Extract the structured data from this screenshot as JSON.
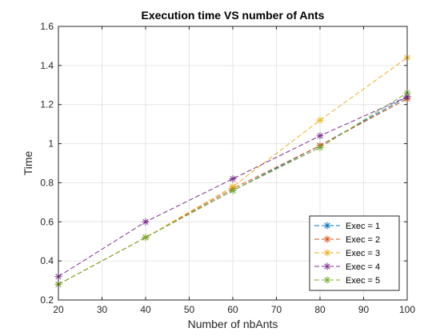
{
  "chart_data": {
    "type": "line",
    "title": "Execution time VS number of Ants",
    "xlabel": "Number of nbAnts",
    "ylabel": "Time",
    "xlim": [
      20,
      100
    ],
    "ylim": [
      0.2,
      1.6
    ],
    "x_ticks": [
      "20",
      "30",
      "40",
      "50",
      "60",
      "70",
      "80",
      "90",
      "100"
    ],
    "y_ticks": [
      "0.2",
      "0.4",
      "0.6",
      "0.8",
      "1",
      "1.2",
      "1.4",
      "1.6"
    ],
    "grid": true,
    "legend_position": "bottom-right",
    "marker": "asterisk",
    "line_style": "dashed",
    "x": [
      20,
      40,
      60,
      80,
      100
    ],
    "series": [
      {
        "name": "Exec = 1",
        "color": "#0072BD",
        "values": [
          0.28,
          0.52,
          0.76,
          0.99,
          1.24
        ]
      },
      {
        "name": "Exec = 2",
        "color": "#D95319",
        "values": [
          0.28,
          0.52,
          0.77,
          0.99,
          1.23
        ]
      },
      {
        "name": "Exec = 3",
        "color": "#EDB120",
        "values": [
          0.28,
          0.52,
          0.78,
          1.12,
          1.44
        ]
      },
      {
        "name": "Exec = 4",
        "color": "#7E2F8E",
        "values": [
          0.32,
          0.6,
          0.82,
          1.04,
          1.24
        ]
      },
      {
        "name": "Exec = 5",
        "color": "#77AC30",
        "values": [
          0.28,
          0.52,
          0.76,
          0.98,
          1.26
        ]
      }
    ]
  }
}
